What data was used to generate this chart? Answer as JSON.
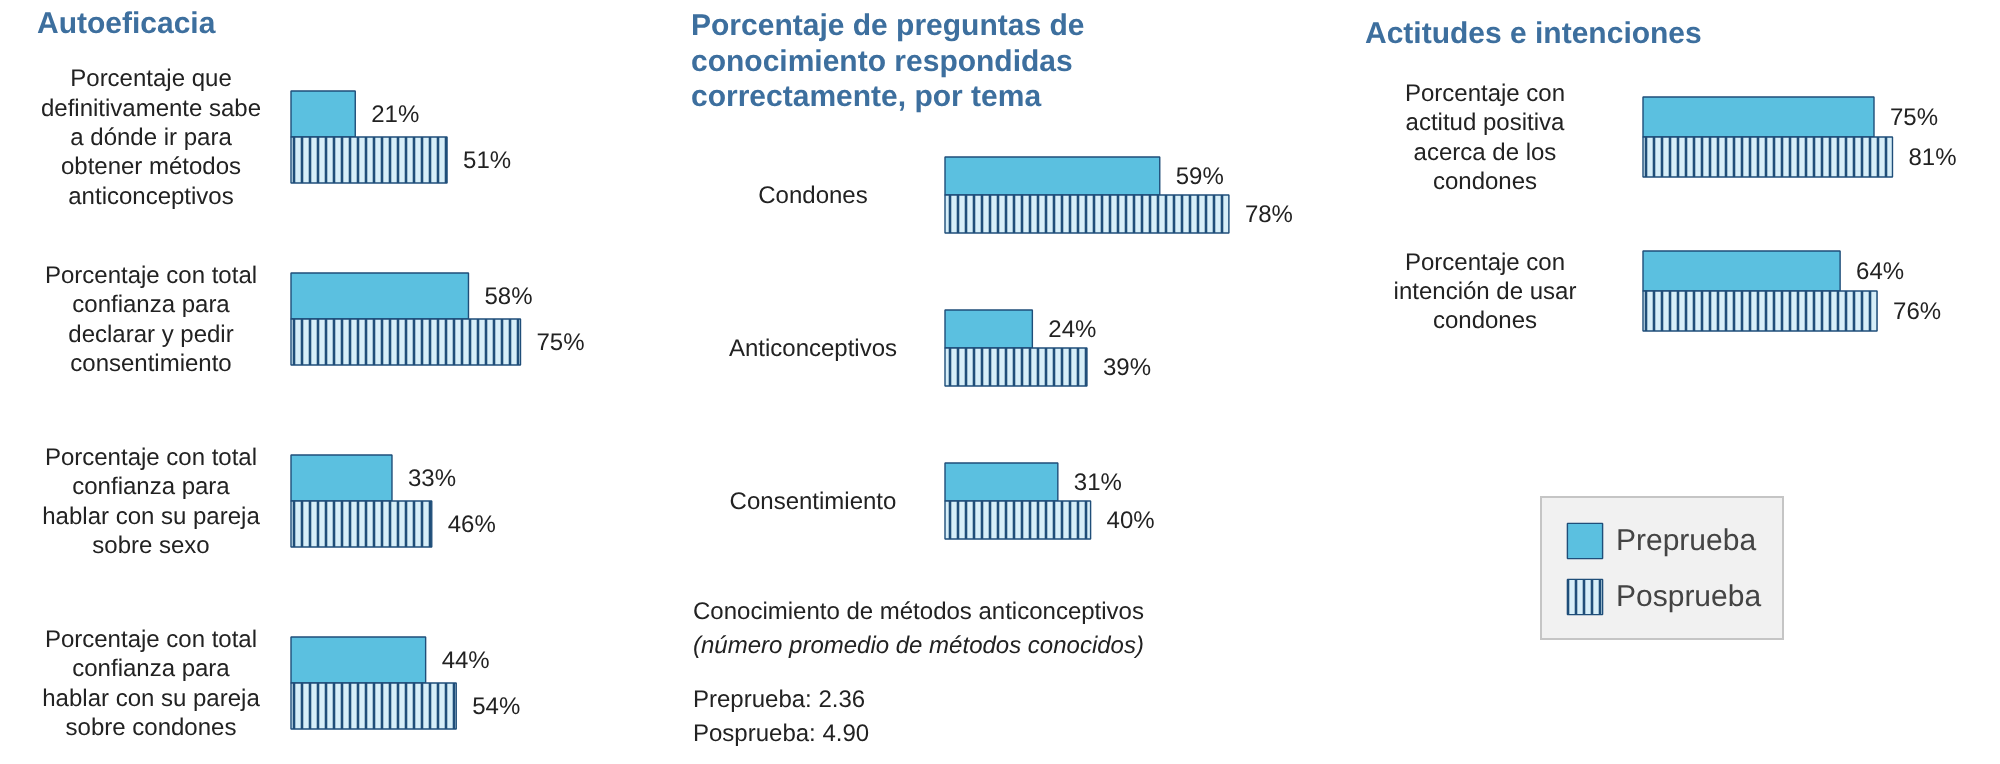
{
  "chart_data": [
    {
      "type": "bar",
      "orientation": "horizontal",
      "title": "Autoeficacia",
      "categories": [
        "Porcentaje que definitivamente sabe a dónde ir para obtener métodos anticonceptivos",
        "Porcentaje con total confianza para declarar y pedir consentimiento",
        "Porcentaje con total confianza para hablar con su pareja sobre sexo",
        "Porcentaje con total confianza para hablar con su pareja sobre condones"
      ],
      "series": [
        {
          "color": "#5bc0e0",
          "values": [
            21,
            58,
            33,
            44
          ],
          "value_labels": [
            "21%",
            "58%",
            "33%",
            "44%"
          ]
        },
        {
          "color": "#d6eef8",
          "values": [
            51,
            75,
            46,
            54
          ],
          "value_labels": [
            "51%",
            "75%",
            "46%",
            "54%"
          ]
        }
      ]
    },
    {
      "type": "bar",
      "orientation": "horizontal",
      "title": "Porcentaje de preguntas de conocimiento respondidas correctamente, por tema",
      "categories": [
        "Condones",
        "Anticonceptivos",
        "Consentimiento"
      ],
      "series": [
        {
          "color": "#5bc0e0",
          "values": [
            59,
            24,
            31
          ],
          "value_labels": [
            "59%",
            "24%",
            "31%"
          ]
        },
        {
          "color": "#d6eef8",
          "values": [
            78,
            39,
            40
          ],
          "value_labels": [
            "78%",
            "39%",
            "40%"
          ]
        }
      ],
      "annotations": [
        "Conocimiento de métodos anticonceptivos",
        "(número promedio de métodos conocidos)",
        "Preprueba: 2.36",
        "Posprueba: 4.90"
      ]
    },
    {
      "type": "bar",
      "orientation": "horizontal",
      "title": "Actitudes e intenciones",
      "categories": [
        "Porcentaje con actitud positiva acerca de los condones",
        "Porcentaje con intención de usar condones"
      ],
      "series": [
        {
          "name": "Preprueba",
          "color": "#5bc0e0",
          "values": [
            75,
            64
          ],
          "value_labels": [
            "75%",
            "64%"
          ]
        },
        {
          "name": "Posprueba",
          "color": "#d6eef8",
          "values": [
            81,
            76
          ],
          "value_labels": [
            "81%",
            "76%"
          ]
        }
      ],
      "legend": "bottom"
    }
  ]
}
